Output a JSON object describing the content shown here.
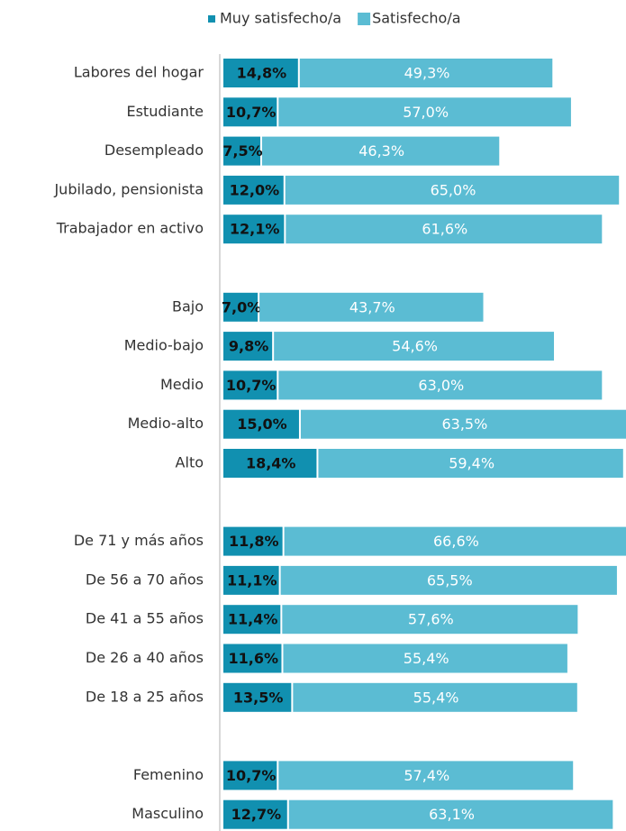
{
  "chart_data": {
    "type": "stacked-barh",
    "categories": [
      "Labores del hogar",
      "Estudiante",
      "Desempleado",
      "Jubilado, pensionista",
      "Trabajador en activo",
      null,
      "Bajo",
      "Medio-bajo",
      "Medio",
      "Medio-alto",
      "Alto",
      null,
      "De 71 y más años",
      "De 56 a 70 años",
      "De 41 a 55 años",
      "De 26 a 40 años",
      "De 18 a 25 años",
      null,
      "Femenino",
      "Masculino"
    ],
    "series": [
      {
        "name": "Muy satisfecho/a",
        "color": "#1190b0",
        "values": [
          14.8,
          10.7,
          7.5,
          12.0,
          12.1,
          null,
          7.0,
          9.8,
          10.7,
          15.0,
          18.4,
          null,
          11.8,
          11.1,
          11.4,
          11.6,
          13.5,
          null,
          10.7,
          12.7
        ],
        "value_labels": [
          "14,8%",
          "10,7%",
          "7,5%",
          "12,0%",
          "12,1%",
          null,
          "7,0%",
          "9,8%",
          "10,7%",
          "15,0%",
          "18,4%",
          null,
          "11,8%",
          "11,1%",
          "11,4%",
          "11,6%",
          "13,5%",
          null,
          "10,7%",
          "12,7%"
        ]
      },
      {
        "name": "Satisfecho/a",
        "color": "#5bbcd3",
        "values": [
          49.3,
          57.0,
          46.3,
          65.0,
          61.6,
          null,
          43.7,
          54.6,
          63.0,
          63.5,
          59.4,
          null,
          66.6,
          65.5,
          57.6,
          55.4,
          55.4,
          null,
          57.4,
          63.1
        ],
        "value_labels": [
          "49,3%",
          "57,0%",
          "46,3%",
          "65,0%",
          "61,6%",
          null,
          "43,7%",
          "54,6%",
          "63,0%",
          "63,5%",
          "59,4%",
          null,
          "66,6%",
          "65,5%",
          "57,6%",
          "55,4%",
          "55,4%",
          null,
          "57,4%",
          "63,1%"
        ]
      }
    ],
    "legend": "top"
  }
}
